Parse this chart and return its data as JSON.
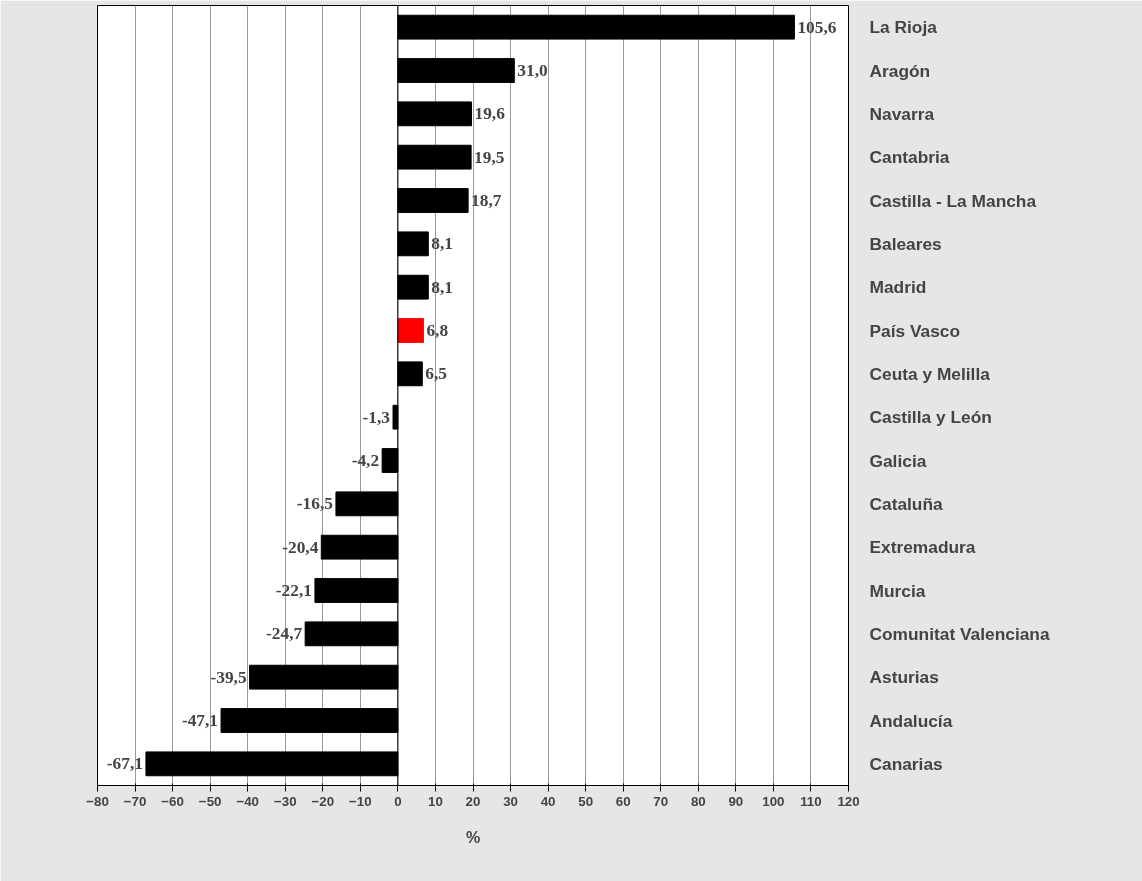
{
  "chart_data": {
    "type": "bar",
    "orientation": "horizontal",
    "xlabel": "%",
    "categories": [
      "La Rioja",
      "Aragón",
      "Navarra",
      "Cantabria",
      "Castilla - La Mancha",
      "Baleares",
      "Madrid",
      "País Vasco",
      "Ceuta y Melilla",
      "Castilla y León",
      "Galicia",
      "Cataluña",
      "Extremadura",
      "Murcia",
      "Comunitat Valenciana",
      "Asturias",
      "Andalucía",
      "Canarias"
    ],
    "values": [
      105.6,
      31.0,
      19.6,
      19.5,
      18.7,
      8.1,
      8.1,
      6.8,
      6.5,
      -1.3,
      -4.2,
      -16.5,
      -20.4,
      -22.1,
      -24.7,
      -39.5,
      -47.1,
      -67.1
    ],
    "colors": [
      "#000000",
      "#000000",
      "#000000",
      "#000000",
      "#000000",
      "#000000",
      "#000000",
      "#ff0000",
      "#000000",
      "#000000",
      "#000000",
      "#000000",
      "#000000",
      "#000000",
      "#000000",
      "#000000",
      "#000000",
      "#000000"
    ],
    "value_labels": [
      "105,6",
      "31,0",
      "19,6",
      "19,5",
      "18,7",
      "8,1",
      "8,1",
      "6,8",
      "6,5",
      "-1,3",
      "-4,2",
      "-16,5",
      "-20,4",
      "-22,1",
      "-24,7",
      "-39,5",
      "-47,1",
      "-67,1"
    ],
    "xlim": [
      -80,
      120
    ],
    "xticks": [
      -80,
      -70,
      -60,
      -50,
      -40,
      -30,
      -20,
      -10,
      0,
      10,
      20,
      30,
      40,
      50,
      60,
      70,
      80,
      90,
      100,
      110,
      120
    ],
    "grid": "x"
  }
}
